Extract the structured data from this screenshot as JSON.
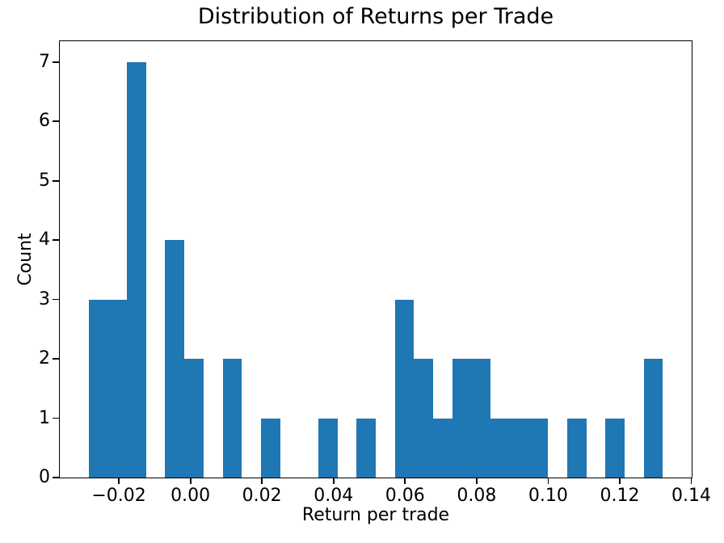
{
  "figure": {
    "title": "Distribution of Returns per Trade",
    "xlabel": "Return per trade",
    "ylabel": "Count"
  },
  "chart_data": {
    "type": "bar",
    "subtype": "histogram",
    "title": "Distribution of Returns per Trade",
    "xlabel": "Return per trade",
    "ylabel": "Count",
    "bar_color": "#1f77b4",
    "background_color": "#ffffff",
    "text_color": "#000000",
    "grid": false,
    "legend": null,
    "bin_start": -0.02845,
    "bin_width": 0.005351,
    "n_bins": 30,
    "counts": [
      3,
      3,
      7,
      0,
      4,
      2,
      0,
      2,
      0,
      1,
      0,
      0,
      1,
      0,
      1,
      0,
      3,
      2,
      1,
      2,
      2,
      1,
      1,
      1,
      0,
      1,
      0,
      1,
      0,
      2
    ],
    "total_observations": 41,
    "xlim": [
      -0.0365,
      0.1401
    ],
    "ylim": [
      0,
      7.35
    ],
    "xticks": [
      -0.02,
      0.0,
      0.02,
      0.04,
      0.06,
      0.08,
      0.1,
      0.12,
      0.14
    ],
    "xtick_labels": [
      "−0.02",
      "0.00",
      "0.02",
      "0.04",
      "0.06",
      "0.08",
      "0.10",
      "0.12",
      "0.14"
    ],
    "yticks": [
      0,
      1,
      2,
      3,
      4,
      5,
      6,
      7
    ],
    "ytick_labels": [
      "0",
      "1",
      "2",
      "3",
      "4",
      "5",
      "6",
      "7"
    ]
  }
}
